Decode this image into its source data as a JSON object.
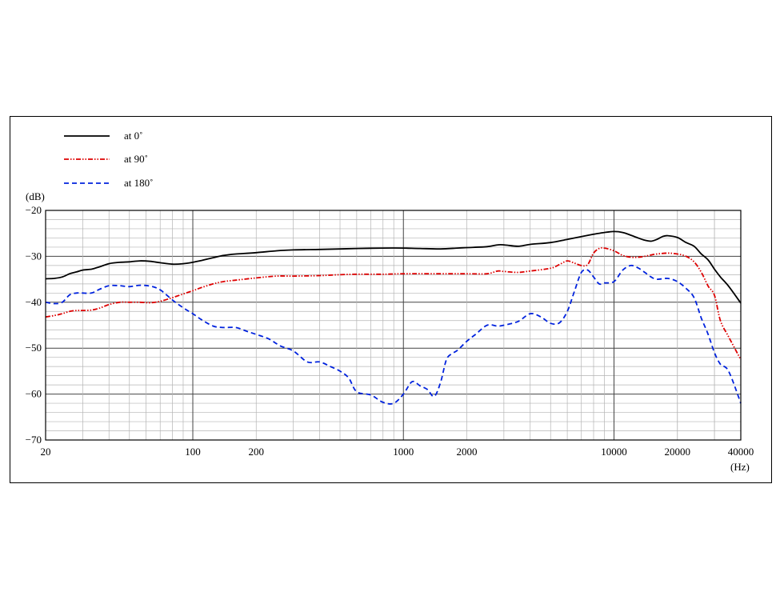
{
  "chart_data": {
    "type": "line",
    "title": "",
    "ylabel": "(dB)",
    "xlabel": "(Hz)",
    "x_scale": "log",
    "xlim": [
      20,
      40000
    ],
    "ylim": [
      -70,
      -20
    ],
    "grid": true,
    "legend_position": "top-left",
    "yticks": [
      -20,
      -30,
      -40,
      -50,
      -60,
      -70
    ],
    "ytick_labels": [
      "−20",
      "−30",
      "−40",
      "−50",
      "−60",
      "−70"
    ],
    "xticks": [
      20,
      100,
      200,
      1000,
      2000,
      10000,
      20000,
      40000
    ],
    "xtick_labels": [
      "20",
      "100",
      "200",
      "1000",
      "2000",
      "10000",
      "20000",
      "40000"
    ],
    "series": [
      {
        "name": "at 0˚",
        "color": "#000000",
        "style": "solid",
        "x": [
          20,
          22,
          24,
          26,
          28,
          30,
          33,
          36,
          40,
          45,
          50,
          56,
          63,
          70,
          80,
          90,
          100,
          110,
          125,
          140,
          160,
          200,
          250,
          300,
          400,
          500,
          600,
          800,
          1000,
          1200,
          1500,
          1800,
          2000,
          2500,
          2800,
          3000,
          3500,
          4000,
          5000,
          6000,
          7000,
          8000,
          9000,
          10000,
          11000,
          12000,
          13000,
          14000,
          15000,
          16000,
          17000,
          18000,
          20000,
          22000,
          24000,
          26000,
          28000,
          30000,
          32000,
          35000,
          40000
        ],
        "y": [
          -34.9,
          -34.8,
          -34.5,
          -33.8,
          -33.4,
          -33.0,
          -32.8,
          -32.3,
          -31.6,
          -31.3,
          -31.2,
          -31.0,
          -31.1,
          -31.4,
          -31.7,
          -31.6,
          -31.3,
          -30.9,
          -30.3,
          -29.8,
          -29.5,
          -29.2,
          -28.8,
          -28.6,
          -28.5,
          -28.4,
          -28.3,
          -28.2,
          -28.2,
          -28.3,
          -28.4,
          -28.2,
          -28.1,
          -27.9,
          -27.5,
          -27.5,
          -27.8,
          -27.4,
          -27.0,
          -26.3,
          -25.7,
          -25.2,
          -24.8,
          -24.6,
          -24.8,
          -25.4,
          -26.0,
          -26.5,
          -26.7,
          -26.3,
          -25.7,
          -25.5,
          -25.9,
          -27.0,
          -27.8,
          -29.5,
          -30.8,
          -32.8,
          -34.5,
          -36.5,
          -40.2
        ]
      },
      {
        "name": "at 90˚",
        "color": "#dd0000",
        "style": "dash-dot-dot",
        "x": [
          20,
          22,
          24,
          26,
          28,
          30,
          33,
          36,
          40,
          45,
          50,
          56,
          63,
          70,
          80,
          90,
          100,
          110,
          125,
          140,
          160,
          200,
          250,
          300,
          400,
          500,
          600,
          800,
          1000,
          1500,
          2000,
          2500,
          2800,
          3000,
          3500,
          4000,
          5000,
          5500,
          6000,
          6500,
          7000,
          7500,
          8000,
          8500,
          9000,
          10000,
          11000,
          12000,
          13000,
          14000,
          15000,
          16000,
          18000,
          20000,
          22000,
          24000,
          26000,
          28000,
          30000,
          32000,
          35000,
          40000
        ],
        "y": [
          -43.2,
          -42.9,
          -42.5,
          -42.0,
          -41.8,
          -41.8,
          -41.7,
          -41.3,
          -40.5,
          -40.0,
          -40.0,
          -40.0,
          -40.1,
          -39.8,
          -39.0,
          -38.2,
          -37.5,
          -36.8,
          -36.0,
          -35.5,
          -35.2,
          -34.7,
          -34.3,
          -34.3,
          -34.2,
          -34.0,
          -33.9,
          -33.9,
          -33.8,
          -33.8,
          -33.8,
          -33.8,
          -33.2,
          -33.3,
          -33.5,
          -33.2,
          -32.6,
          -31.8,
          -31.0,
          -31.5,
          -32.0,
          -31.8,
          -29.3,
          -28.3,
          -28.2,
          -28.8,
          -29.8,
          -30.2,
          -30.2,
          -30.0,
          -29.7,
          -29.5,
          -29.3,
          -29.5,
          -30.0,
          -31.2,
          -33.5,
          -36.5,
          -38.5,
          -44.0,
          -47.5,
          -52.5
        ]
      },
      {
        "name": "at 180˚",
        "color": "#0022dd",
        "style": "dashed",
        "x": [
          20,
          22,
          24,
          26,
          28,
          30,
          33,
          36,
          40,
          45,
          50,
          56,
          63,
          70,
          80,
          90,
          100,
          110,
          125,
          140,
          160,
          180,
          200,
          230,
          260,
          300,
          350,
          400,
          450,
          500,
          550,
          600,
          700,
          800,
          900,
          1000,
          1100,
          1200,
          1300,
          1400,
          1500,
          1600,
          1700,
          1800,
          2000,
          2200,
          2500,
          2800,
          3000,
          3500,
          4000,
          4500,
          5000,
          5500,
          6000,
          6500,
          7000,
          7500,
          8000,
          8500,
          9000,
          10000,
          11000,
          12000,
          13000,
          14000,
          15000,
          16000,
          18000,
          20000,
          22000,
          24000,
          26000,
          28000,
          30000,
          32000,
          35000,
          40000
        ],
        "y": [
          -40.0,
          -40.3,
          -40.0,
          -38.4,
          -38.0,
          -38.0,
          -38.0,
          -37.2,
          -36.4,
          -36.4,
          -36.6,
          -36.3,
          -36.5,
          -37.3,
          -39.5,
          -41.2,
          -42.5,
          -43.8,
          -45.2,
          -45.5,
          -45.5,
          -46.3,
          -47.0,
          -48.0,
          -49.5,
          -50.6,
          -53.0,
          -53.0,
          -54.0,
          -55.0,
          -56.5,
          -59.5,
          -60.2,
          -61.8,
          -62.0,
          -60.0,
          -57.3,
          -58.2,
          -59.0,
          -60.5,
          -57.5,
          -52.5,
          -51.2,
          -50.5,
          -48.5,
          -47.0,
          -45.0,
          -45.2,
          -45.0,
          -44.2,
          -42.5,
          -43.2,
          -44.6,
          -44.5,
          -42.0,
          -37.5,
          -33.5,
          -33.0,
          -34.5,
          -36.0,
          -35.8,
          -35.5,
          -33.0,
          -32.0,
          -32.5,
          -33.5,
          -34.5,
          -35.0,
          -34.8,
          -35.5,
          -37.0,
          -39.0,
          -43.5,
          -47.0,
          -51.0,
          -53.5,
          -55.0,
          -62.0
        ]
      }
    ]
  }
}
